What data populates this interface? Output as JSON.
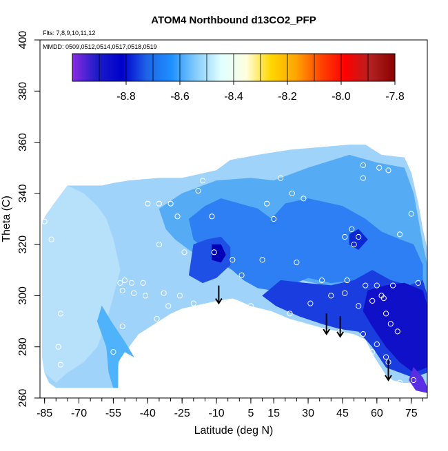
{
  "chart_data": {
    "type": "heatmap",
    "title": "ATOM4 Northbound d13CO2_PFP",
    "subtitle_flights": "Flts: 7,8,9,10,11,12",
    "subtitle_dates": "MMDD: 0509,0512,0514,0517,0518,0519",
    "xlabel": "Latitude (deg N)",
    "ylabel": "Theta (C)",
    "xlim": [
      -87,
      82
    ],
    "ylim": [
      260,
      400
    ],
    "x_ticks": [
      -85,
      -70,
      -55,
      -40,
      -25,
      -10,
      5,
      15,
      30,
      45,
      60,
      75
    ],
    "x_minor_step": 5,
    "y_ticks": [
      260,
      280,
      300,
      320,
      340,
      360,
      380,
      400
    ],
    "colorbar": {
      "range": [
        -9.0,
        -7.8
      ],
      "ticks": [
        "-8.8",
        "-8.6",
        "-8.4",
        "-8.2",
        "-8.0",
        "-7.8"
      ],
      "tick_values": [
        -8.8,
        -8.6,
        -8.4,
        -8.2,
        -8.0,
        -7.8
      ],
      "stops": [
        "#8a2be2",
        "#1c1cc8",
        "#0000cd",
        "#1e64e6",
        "#1e90ff",
        "#87cefa",
        "#e0ffff",
        "#ffffe0",
        "#ffd700",
        "#ffa500",
        "#ff4500",
        "#ff0000",
        "#b22222",
        "#8b0000"
      ]
    },
    "field_regions": [
      {
        "name": "base",
        "color": "#9fd3fa",
        "points": [
          [
            -86,
            329
          ],
          [
            -84,
            332
          ],
          [
            -80,
            337
          ],
          [
            -75,
            343
          ],
          [
            -60,
            343
          ],
          [
            -55,
            344
          ],
          [
            -48,
            345
          ],
          [
            -35,
            346
          ],
          [
            -25,
            346
          ],
          [
            -20,
            347
          ],
          [
            -10,
            349
          ],
          [
            -4,
            353
          ],
          [
            2,
            354
          ],
          [
            8,
            355
          ],
          [
            15,
            356
          ],
          [
            22,
            357
          ],
          [
            35,
            358
          ],
          [
            48,
            359
          ],
          [
            55,
            359
          ],
          [
            62,
            355
          ],
          [
            72,
            354
          ],
          [
            75,
            348
          ],
          [
            78,
            336
          ],
          [
            80,
            326
          ],
          [
            82,
            318
          ],
          [
            82,
            264
          ],
          [
            78,
            266
          ],
          [
            71,
            266
          ],
          [
            67,
            267
          ],
          [
            64,
            269
          ],
          [
            59,
            276
          ],
          [
            55,
            283
          ],
          [
            50,
            285
          ],
          [
            44,
            286
          ],
          [
            38,
            287
          ],
          [
            30,
            289
          ],
          [
            22,
            291
          ],
          [
            14,
            294
          ],
          [
            5,
            296
          ],
          [
            0,
            298
          ],
          [
            -3,
            299
          ],
          [
            -10,
            298
          ],
          [
            -15,
            297
          ],
          [
            -20,
            296
          ],
          [
            -25,
            295
          ],
          [
            -30,
            293
          ],
          [
            -37,
            289
          ],
          [
            -44,
            285
          ],
          [
            -49,
            279
          ],
          [
            -52,
            276
          ],
          [
            -53,
            272
          ],
          [
            -53,
            264
          ],
          [
            -55,
            264
          ],
          [
            -80,
            264
          ],
          [
            -83,
            266
          ],
          [
            -85,
            270
          ],
          [
            -86,
            276
          ]
        ]
      },
      {
        "name": "pale-west",
        "color": "#b7e0fb",
        "points": [
          [
            -86,
            329
          ],
          [
            -84,
            332
          ],
          [
            -80,
            337
          ],
          [
            -75,
            343
          ],
          [
            -68,
            340
          ],
          [
            -62,
            335
          ],
          [
            -58,
            330
          ],
          [
            -55,
            322
          ],
          [
            -52,
            310
          ],
          [
            -55,
            300
          ],
          [
            -58,
            290
          ],
          [
            -62,
            280
          ],
          [
            -68,
            274
          ],
          [
            -75,
            270
          ],
          [
            -80,
            266
          ],
          [
            -85,
            270
          ],
          [
            -86,
            276
          ]
        ]
      },
      {
        "name": "sky-mid",
        "color": "#4fb3fb",
        "points": [
          [
            -55,
            264
          ],
          [
            -53,
            264
          ],
          [
            -53,
            274
          ],
          [
            -50,
            278
          ],
          [
            -46,
            276
          ],
          [
            -50,
            282
          ],
          [
            -56,
            290
          ],
          [
            -60,
            296
          ],
          [
            -62,
            290
          ],
          [
            -58,
            280
          ],
          [
            -57,
            270
          ]
        ]
      },
      {
        "name": "mid-blue",
        "color": "#55acf5",
        "points": [
          [
            -35,
            334
          ],
          [
            -25,
            340
          ],
          [
            -10,
            345
          ],
          [
            5,
            346
          ],
          [
            15,
            345
          ],
          [
            30,
            350
          ],
          [
            48,
            355
          ],
          [
            60,
            352
          ],
          [
            72,
            350
          ],
          [
            76,
            340
          ],
          [
            78,
            330
          ],
          [
            80,
            320
          ],
          [
            82,
            312
          ],
          [
            82,
            300
          ],
          [
            78,
            296
          ],
          [
            70,
            297
          ],
          [
            60,
            300
          ],
          [
            48,
            303
          ],
          [
            38,
            304
          ],
          [
            28,
            306
          ],
          [
            20,
            309
          ],
          [
            12,
            313
          ],
          [
            5,
            318
          ],
          [
            -2,
            318
          ],
          [
            -8,
            312
          ],
          [
            -15,
            314
          ],
          [
            -22,
            318
          ],
          [
            -28,
            322
          ],
          [
            -32,
            326
          ]
        ]
      },
      {
        "name": "blue-center",
        "color": "#2e7ff3",
        "points": [
          [
            -22,
            330
          ],
          [
            -15,
            335
          ],
          [
            -8,
            338
          ],
          [
            0,
            336
          ],
          [
            8,
            334
          ],
          [
            14,
            330
          ],
          [
            20,
            336
          ],
          [
            30,
            338
          ],
          [
            45,
            335
          ],
          [
            55,
            330
          ],
          [
            62,
            325
          ],
          [
            70,
            322
          ],
          [
            76,
            320
          ],
          [
            80,
            312
          ],
          [
            80,
            300
          ],
          [
            70,
            300
          ],
          [
            60,
            302
          ],
          [
            50,
            306
          ],
          [
            40,
            305
          ],
          [
            30,
            307
          ],
          [
            22,
            304
          ],
          [
            15,
            302
          ],
          [
            8,
            303
          ],
          [
            2,
            306
          ],
          [
            -3,
            310
          ],
          [
            -10,
            314
          ],
          [
            -15,
            318
          ],
          [
            -20,
            322
          ]
        ]
      },
      {
        "name": "deep-1",
        "color": "#1f50e6",
        "points": [
          [
            -20,
            320
          ],
          [
            -14,
            322
          ],
          [
            -8,
            323
          ],
          [
            -4,
            319
          ],
          [
            -4,
            312
          ],
          [
            -10,
            307
          ],
          [
            -16,
            305
          ],
          [
            -22,
            308
          ]
        ]
      },
      {
        "name": "deep-2",
        "color": "#1a3de0",
        "points": [
          [
            10,
            300
          ],
          [
            18,
            306
          ],
          [
            28,
            305
          ],
          [
            40,
            304
          ],
          [
            50,
            306
          ],
          [
            58,
            310
          ],
          [
            66,
            306
          ],
          [
            74,
            304
          ],
          [
            80,
            306
          ],
          [
            82,
            300
          ],
          [
            82,
            270
          ],
          [
            76,
            268
          ],
          [
            70,
            270
          ],
          [
            64,
            272
          ],
          [
            58,
            280
          ],
          [
            52,
            286
          ],
          [
            44,
            287
          ],
          [
            36,
            289
          ],
          [
            26,
            292
          ],
          [
            16,
            296
          ]
        ]
      },
      {
        "name": "deep-3",
        "color": "#1010c8",
        "points": [
          [
            56,
            302
          ],
          [
            64,
            304
          ],
          [
            72,
            305
          ],
          [
            80,
            302
          ],
          [
            82,
            296
          ],
          [
            82,
            272
          ],
          [
            76,
            270
          ],
          [
            70,
            274
          ],
          [
            64,
            280
          ],
          [
            58,
            288
          ],
          [
            54,
            294
          ]
        ]
      },
      {
        "name": "deep-4",
        "color": "#0000b4",
        "points": [
          [
            -12,
            320
          ],
          [
            -8,
            320
          ],
          [
            -6,
            316
          ],
          [
            -8,
            313
          ],
          [
            -12,
            314
          ]
        ]
      },
      {
        "name": "deep-5",
        "color": "#0c28d2",
        "points": [
          [
            48,
            324
          ],
          [
            52,
            326
          ],
          [
            56,
            322
          ],
          [
            52,
            318
          ],
          [
            48,
            320
          ]
        ]
      },
      {
        "name": "violet",
        "color": "#5a2ee2",
        "points": [
          [
            76,
            272
          ],
          [
            80,
            268
          ],
          [
            82,
            264
          ],
          [
            82,
            262
          ],
          [
            77,
            263
          ],
          [
            74,
            267
          ]
        ]
      }
    ],
    "sample_points": [
      [
        -85,
        329
      ],
      [
        -82,
        322
      ],
      [
        -78,
        293
      ],
      [
        -79,
        280
      ],
      [
        -78,
        273
      ],
      [
        -55,
        278
      ],
      [
        -50,
        306
      ],
      [
        -51,
        302
      ],
      [
        -52,
        305
      ],
      [
        -51,
        288
      ],
      [
        -45,
        280
      ],
      [
        -45,
        278
      ],
      [
        -47,
        305
      ],
      [
        -46,
        301
      ],
      [
        -42,
        305
      ],
      [
        -41,
        300
      ],
      [
        -40,
        336
      ],
      [
        -35,
        336
      ],
      [
        -30,
        336
      ],
      [
        -35,
        320
      ],
      [
        -33,
        301
      ],
      [
        -31,
        296
      ],
      [
        -36,
        291
      ],
      [
        -27,
        331
      ],
      [
        -26,
        300
      ],
      [
        -20,
        297
      ],
      [
        -24,
        317
      ],
      [
        -16,
        345
      ],
      [
        -18,
        341
      ],
      [
        -12,
        331
      ],
      [
        -11,
        317
      ],
      [
        1,
        308
      ],
      [
        -3,
        314
      ],
      [
        12,
        336
      ],
      [
        15,
        330
      ],
      [
        18,
        346
      ],
      [
        10,
        314
      ],
      [
        5,
        296
      ],
      [
        23,
        340
      ],
      [
        28,
        338
      ],
      [
        25,
        313
      ],
      [
        22,
        293
      ],
      [
        31,
        297
      ],
      [
        36,
        306
      ],
      [
        40,
        300
      ],
      [
        46,
        323
      ],
      [
        47,
        306
      ],
      [
        49,
        326
      ],
      [
        52,
        323
      ],
      [
        50,
        320
      ],
      [
        46,
        301
      ],
      [
        44,
        286
      ],
      [
        54,
        285
      ],
      [
        52,
        296
      ],
      [
        55,
        304
      ],
      [
        60,
        304
      ],
      [
        58,
        298
      ],
      [
        62,
        300
      ],
      [
        63,
        299
      ],
      [
        67,
        304
      ],
      [
        64,
        293
      ],
      [
        66,
        289
      ],
      [
        60,
        281
      ],
      [
        58,
        278
      ],
      [
        64,
        276
      ],
      [
        69,
        286
      ],
      [
        65,
        274
      ],
      [
        70,
        266
      ],
      [
        76,
        267
      ],
      [
        78,
        305
      ],
      [
        75,
        332
      ],
      [
        70,
        324
      ],
      [
        61,
        350
      ],
      [
        65,
        349
      ],
      [
        54,
        351
      ],
      [
        54,
        346
      ]
    ],
    "arrows": [
      {
        "x": -9,
        "y_from": 304,
        "y_to": 297
      },
      {
        "x": 38,
        "y_from": 293,
        "y_to": 285
      },
      {
        "x": 44,
        "y_from": 292,
        "y_to": 284
      },
      {
        "x": 65,
        "y_from": 275,
        "y_to": 267
      }
    ]
  }
}
